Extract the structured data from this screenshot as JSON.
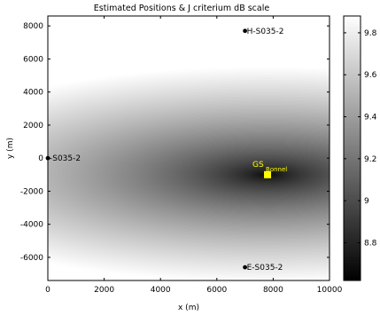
{
  "chart_data": {
    "type": "heatmap",
    "title": "Estimated Positions & J criterium dB scale",
    "xlabel": "x (m)",
    "ylabel": "y (m)",
    "xlim": [
      0,
      10000
    ],
    "ylim": [
      -7400,
      8600
    ],
    "xticks": [
      0,
      2000,
      4000,
      6000,
      8000,
      10000
    ],
    "yticks": [
      -6000,
      -4000,
      -2000,
      0,
      2000,
      4000,
      6000,
      8000
    ],
    "grid": false,
    "colormap": "gray",
    "colorbar": {
      "range": [
        8.62,
        9.88
      ],
      "ticks": [
        8.8,
        9,
        9.2,
        9.4,
        9.6,
        9.8
      ]
    },
    "field": {
      "minimum_at": {
        "x": 7800,
        "y": -1000
      },
      "min_value": 8.62,
      "max_value": 9.88
    },
    "sensors": [
      {
        "label": "H-S035-2",
        "x": 7000,
        "y": 7700
      },
      {
        "label": "-S035-2",
        "x": 0,
        "y": 0
      },
      {
        "label": "E-S035-2",
        "x": 7000,
        "y": -6600
      }
    ],
    "target": {
      "label": "GS",
      "sublabel": "Bonnel",
      "x": 7800,
      "y": -1000,
      "color": "#ffff00"
    }
  }
}
